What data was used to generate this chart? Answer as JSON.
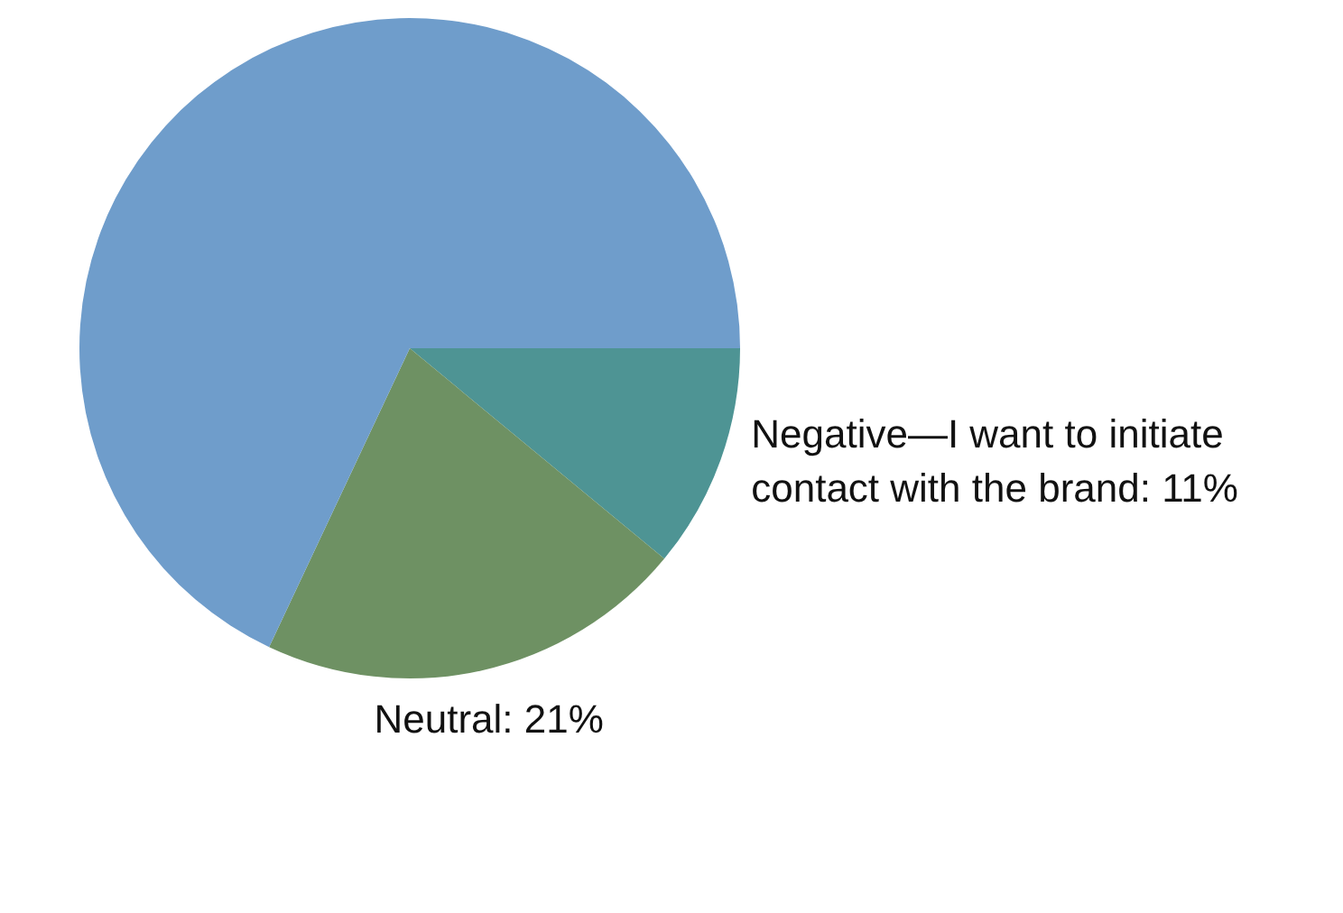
{
  "chart_data": {
    "type": "pie",
    "categories": [
      "Negative—I want to initiate contact with the brand: 11%",
      "Neutral: 21%",
      null
    ],
    "values": [
      11,
      21,
      68
    ],
    "colors": [
      "#4e9494",
      "#6e9163",
      "#6f9dcb"
    ],
    "legend": false
  }
}
